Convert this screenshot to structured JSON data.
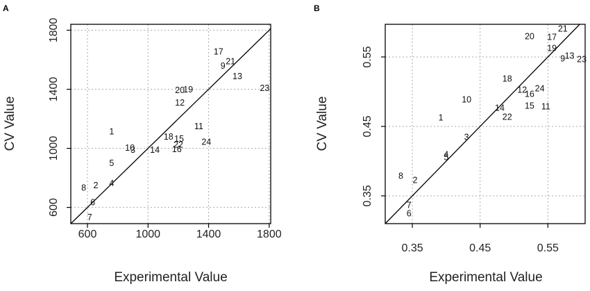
{
  "chart_data": [
    {
      "panel_label": "A",
      "type": "scatter",
      "title": "",
      "xlabel": "Experimental Value",
      "ylabel": "CV Value",
      "xlim": [
        490,
        1810
      ],
      "ylim": [
        490,
        1840
      ],
      "xticks": [
        600,
        1000,
        1400,
        1800
      ],
      "yticks": [
        600,
        1000,
        1400,
        1800
      ],
      "grid": true,
      "reference_line": "y = x",
      "points": [
        {
          "label": "1",
          "x": 760,
          "y": 1110
        },
        {
          "label": "2",
          "x": 655,
          "y": 745
        },
        {
          "label": "3",
          "x": 900,
          "y": 985
        },
        {
          "label": "4",
          "x": 760,
          "y": 760
        },
        {
          "label": "5",
          "x": 760,
          "y": 895
        },
        {
          "label": "6",
          "x": 635,
          "y": 630
        },
        {
          "label": "7",
          "x": 615,
          "y": 530
        },
        {
          "label": "8",
          "x": 575,
          "y": 730
        },
        {
          "label": "9",
          "x": 1495,
          "y": 1555
        },
        {
          "label": "10",
          "x": 880,
          "y": 1000
        },
        {
          "label": "11",
          "x": 1335,
          "y": 1145
        },
        {
          "label": "12",
          "x": 1210,
          "y": 1305
        },
        {
          "label": "13",
          "x": 1590,
          "y": 1485
        },
        {
          "label": "14",
          "x": 1045,
          "y": 985
        },
        {
          "label": "15",
          "x": 1205,
          "y": 1060
        },
        {
          "label": "16",
          "x": 1190,
          "y": 990
        },
        {
          "label": "17",
          "x": 1465,
          "y": 1650
        },
        {
          "label": "18",
          "x": 1135,
          "y": 1075
        },
        {
          "label": "19",
          "x": 1265,
          "y": 1395
        },
        {
          "label": "20",
          "x": 1210,
          "y": 1390
        },
        {
          "label": "21",
          "x": 1545,
          "y": 1585
        },
        {
          "label": "22",
          "x": 1200,
          "y": 1020
        },
        {
          "label": "23",
          "x": 1770,
          "y": 1405
        },
        {
          "label": "24",
          "x": 1385,
          "y": 1040
        }
      ]
    },
    {
      "panel_label": "B",
      "type": "scatter",
      "title": "",
      "xlabel": "Experimental Value",
      "ylabel": "CV Value",
      "xlim": [
        0.31,
        0.605
      ],
      "ylim": [
        0.31,
        0.597
      ],
      "xticks": [
        0.35,
        0.45,
        0.55
      ],
      "yticks": [
        0.35,
        0.45,
        0.55
      ],
      "grid": true,
      "reference_line": "y = x",
      "points": [
        {
          "label": "1",
          "x": 0.392,
          "y": 0.462
        },
        {
          "label": "2",
          "x": 0.354,
          "y": 0.372
        },
        {
          "label": "3",
          "x": 0.43,
          "y": 0.434
        },
        {
          "label": "4",
          "x": 0.4,
          "y": 0.409
        },
        {
          "label": "5",
          "x": 0.4,
          "y": 0.405
        },
        {
          "label": "6",
          "x": 0.345,
          "y": 0.324
        },
        {
          "label": "7",
          "x": 0.345,
          "y": 0.336
        },
        {
          "label": "8",
          "x": 0.333,
          "y": 0.378
        },
        {
          "label": "9",
          "x": 0.572,
          "y": 0.547
        },
        {
          "label": "10",
          "x": 0.43,
          "y": 0.488
        },
        {
          "label": "11",
          "x": 0.547,
          "y": 0.478
        },
        {
          "label": "12",
          "x": 0.512,
          "y": 0.502
        },
        {
          "label": "13",
          "x": 0.582,
          "y": 0.551
        },
        {
          "label": "14",
          "x": 0.479,
          "y": 0.476
        },
        {
          "label": "15",
          "x": 0.523,
          "y": 0.479
        },
        {
          "label": "16",
          "x": 0.523,
          "y": 0.496
        },
        {
          "label": "17",
          "x": 0.556,
          "y": 0.578
        },
        {
          "label": "18",
          "x": 0.49,
          "y": 0.518
        },
        {
          "label": "19",
          "x": 0.556,
          "y": 0.562
        },
        {
          "label": "20",
          "x": 0.523,
          "y": 0.579
        },
        {
          "label": "21",
          "x": 0.572,
          "y": 0.59
        },
        {
          "label": "22",
          "x": 0.49,
          "y": 0.463
        },
        {
          "label": "23",
          "x": 0.6,
          "y": 0.546
        },
        {
          "label": "24",
          "x": 0.538,
          "y": 0.504
        }
      ]
    }
  ],
  "style": {
    "line_color": "#000000",
    "grid_color": "#aaaaaa",
    "text_color": "#222222"
  }
}
